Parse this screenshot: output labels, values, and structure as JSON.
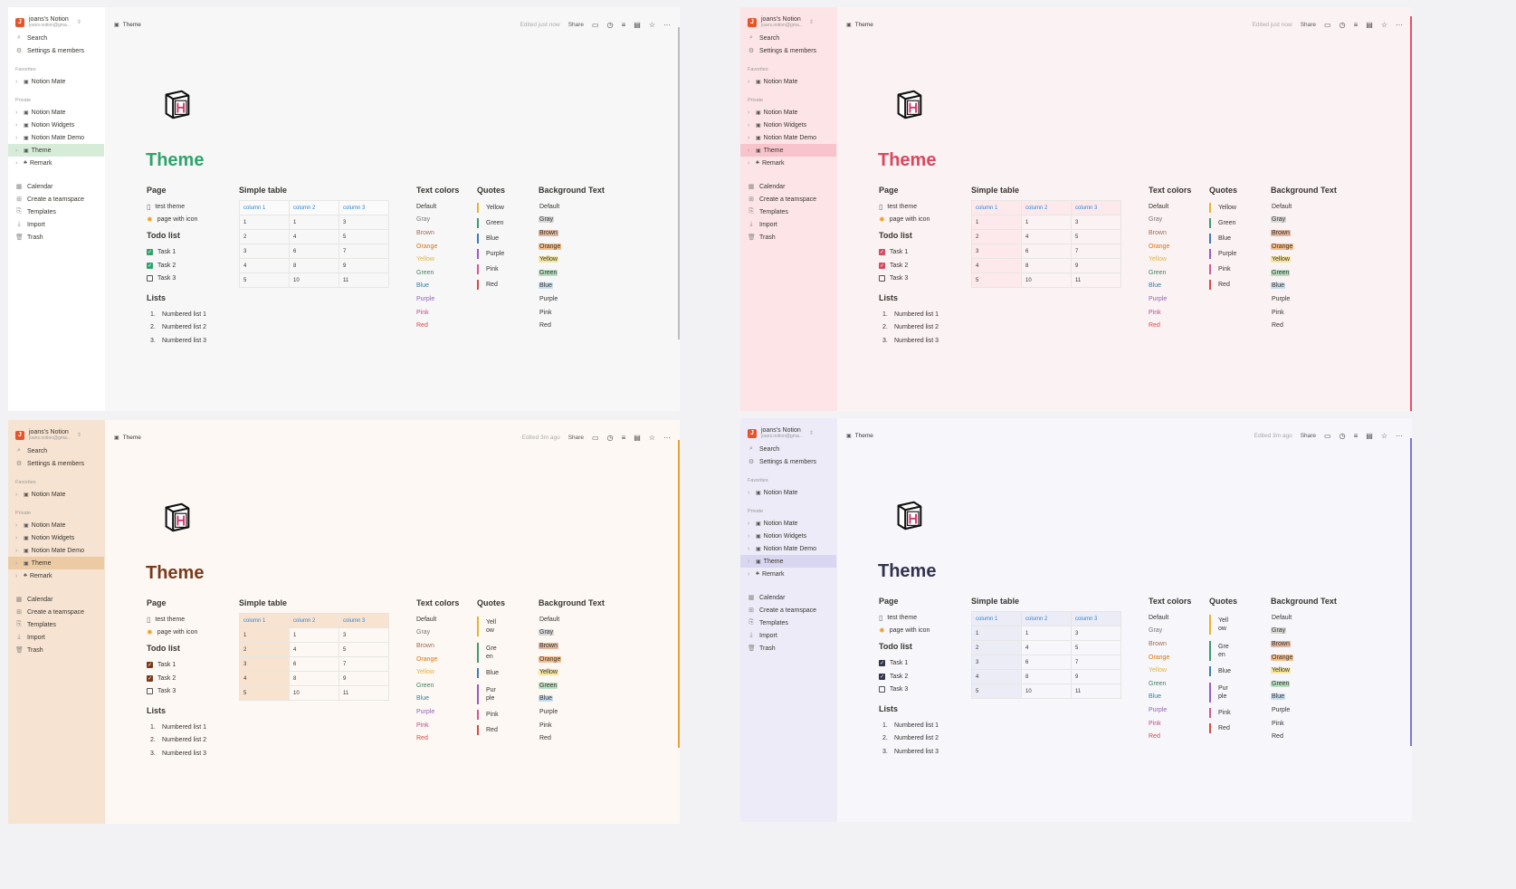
{
  "workspace": {
    "name": "joans's Notion",
    "email": "joans.notion@gma..."
  },
  "sidebar": {
    "search": "Search",
    "settings": "Settings & members",
    "favorites_label": "Favorites",
    "favorite": "Notion Mate",
    "private_label": "Private",
    "pages": [
      "Notion Mate",
      "Notion Widgets",
      "Notion Mate Demo",
      "Theme",
      "Remark"
    ],
    "bottom": [
      "Calendar",
      "Create a teamspace",
      "Templates",
      "Import",
      "Trash"
    ]
  },
  "topbar": {
    "crumb": "Theme",
    "edited_a": "Edited just now",
    "edited_b": "Edited 3m ago",
    "share": "Share"
  },
  "page": {
    "title": "Theme",
    "page_heading": "Page",
    "page_links": [
      "test theme",
      "page with icon"
    ],
    "todo_heading": "Todo list",
    "todos": [
      "Task 1",
      "Task 2",
      "Task 3"
    ],
    "lists_heading": "Lists",
    "numbered": [
      "Numbered list 1",
      "Numbered list 2",
      "Numbered list 3"
    ],
    "table_heading": "Simple table",
    "table_header": [
      "column 1",
      "column 2",
      "column 3"
    ],
    "table_rows": [
      [
        "1",
        "1",
        "3"
      ],
      [
        "2",
        "4",
        "5"
      ],
      [
        "3",
        "6",
        "7"
      ],
      [
        "4",
        "8",
        "9"
      ],
      [
        "5",
        "10",
        "11"
      ]
    ],
    "textcolors_heading": "Text colors",
    "colors": [
      "Default",
      "Gray",
      "Brown",
      "Orange",
      "Yellow",
      "Green",
      "Blue",
      "Purple",
      "Pink",
      "Red"
    ],
    "quotes_heading": "Quotes",
    "quotes": [
      "Yellow",
      "Green",
      "Blue",
      "Purple",
      "Pink",
      "Red"
    ],
    "bgtext_heading": "Background Text"
  },
  "themes": {
    "white": {
      "sidebar": "#ffffff",
      "main": "#f7f7f8",
      "active": "#d6ecd9",
      "accent": "#30a46c",
      "scroll": "#bdbdbd"
    },
    "pink": {
      "sidebar": "#fde4e6",
      "main": "#fbf2f3",
      "active": "#f8c4cb",
      "accent": "#d9485f",
      "scroll": "#e8506a"
    },
    "cream": {
      "sidebar": "#f6e3d1",
      "main": "#fdf8f3",
      "active": "#eccaa4",
      "accent": "#7a3b1d",
      "scroll": "#e5a23a"
    },
    "lavender": {
      "sidebar": "#ecebf7",
      "main": "#f6f6fb",
      "active": "#d9d6f2",
      "accent": "#33334d",
      "scroll": "#7d78d4"
    }
  }
}
